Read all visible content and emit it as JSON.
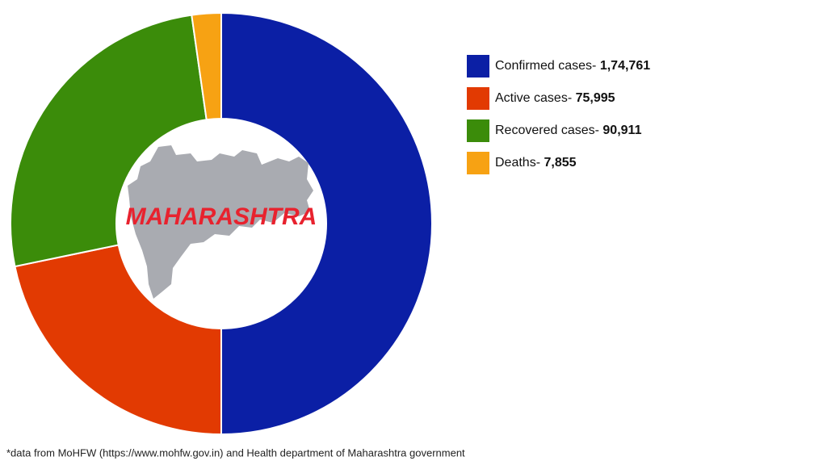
{
  "chart_data": {
    "type": "donut",
    "center_label": "MAHARASHTRA",
    "series": [
      {
        "name": "Confirmed cases-",
        "color": "#0b1fa5",
        "values": [
          174761
        ],
        "value_labels": [
          "1,74,761"
        ]
      },
      {
        "name": "Active cases-",
        "color": "#e23a02",
        "values": [
          75995
        ],
        "value_labels": [
          "75,995"
        ]
      },
      {
        "name": "Recovered cases-",
        "color": "#3b8c0a",
        "values": [
          90911
        ],
        "value_labels": [
          "90,911"
        ]
      },
      {
        "name": "Deaths-",
        "color": "#f7a213",
        "values": [
          7855
        ],
        "value_labels": [
          "7,855"
        ]
      }
    ],
    "footnote": "*data from MoHFW (https://www.mohfw.gov.in) and Health department of Maharashtra government"
  }
}
